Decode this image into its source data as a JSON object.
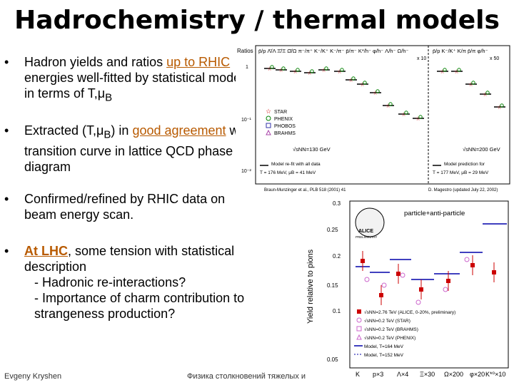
{
  "slide": {
    "title": "Hadrochemistry / thermal models",
    "bullet_symbol": "•",
    "bullets": [
      {
        "pre": "Hadron yields and ratios ",
        "link": "up to RHIC",
        "post": " energies well-fitted by statistical model in terms of T,μ",
        "sub": "B"
      },
      {
        "pre": "Extracted (T,μ",
        "sub": "B",
        "mid": ") in ",
        "link": "good agreement",
        "post": " with transition curve in lattice QCD phase diagram"
      },
      {
        "text": "Confirmed/refined by RHIC data on beam energy scan."
      },
      {
        "link": "At LHC",
        "post": ", some tension with statistical description",
        "subitems": [
          "- Hadronic re-interactions?",
          "- Importance of charm contribution to strangeness production?"
        ]
      }
    ],
    "footer_left": "Evgeny Kryshen",
    "footer_center": "Физика столкновений тяжелых и"
  },
  "figure1": {
    "ylabel": "Ratios",
    "yticks": [
      "1",
      "10⁻¹",
      "10⁻²"
    ],
    "header_left": "p̄/p  Λ̄/Λ  Ξ̄/Ξ  Ω̄/Ω  π⁻/π⁺ K⁻/K⁺ K⁻/π⁻ p̄/π⁻ K*/h⁻ φ/h⁻ Λ/h⁻ Ω/h⁻",
    "header_left_scale": "x 10",
    "header_right": "p̄/p  K⁻/K⁺ K/π  p̄/π  φ/h⁻",
    "header_right_scale": "x 50",
    "legend": [
      "STAR",
      "PHENIX",
      "PHOBOS",
      "BRAHMS"
    ],
    "energy_left": "√sNN=130 GeV",
    "energy_right": "√sNN=200 GeV",
    "fit_left_title": "Model re-fit with all data",
    "fit_left_params": "T = 176 MeV,  μB = 41 MeV",
    "fit_right_title": "Model prediction for",
    "fit_right_params": "T = 177 MeV,  μB = 29 MeV",
    "footer_left": "Braun-Munzinger et al., PLB 518 (2001) 41",
    "footer_right": "D. Magestro (updated July 22, 2002)",
    "colors": {
      "star": "#cc0000",
      "phenix": "#008000",
      "phobos": "#3333aa",
      "brahms": "#aa44aa",
      "model": "#000000"
    }
  },
  "figure2": {
    "ylabel": "Yield relative to pions",
    "yticks": [
      "0.05",
      "0.1",
      "0.15",
      "0.2",
      "0.25",
      "0.3"
    ],
    "xlabels": [
      "K",
      "p×3",
      "Λ×4",
      "Ξ×30",
      "Ω×200",
      "φ×20",
      "K*⁰×10"
    ],
    "logo_top": "ALICE",
    "logo_bottom": "PRELIMINARY",
    "title": "particle+anti-particle",
    "legend": [
      "√sNN=2.76 TeV (ALICE, 0-20%, preliminary)",
      "√sNN=0.2 TeV (STAR)",
      "√sNN=0.2 TeV (BRAHMS)",
      "√sNN=0.2 TeV (PHENIX)",
      "Model, T=164 MeV",
      "Model, T=152 MeV"
    ],
    "colors": {
      "alice": "#cc0000",
      "star": "#cc66cc",
      "brahms": "#cc66cc",
      "phenix": "#cc66cc",
      "model164": "#0000aa",
      "model152": "#0000aa"
    }
  }
}
